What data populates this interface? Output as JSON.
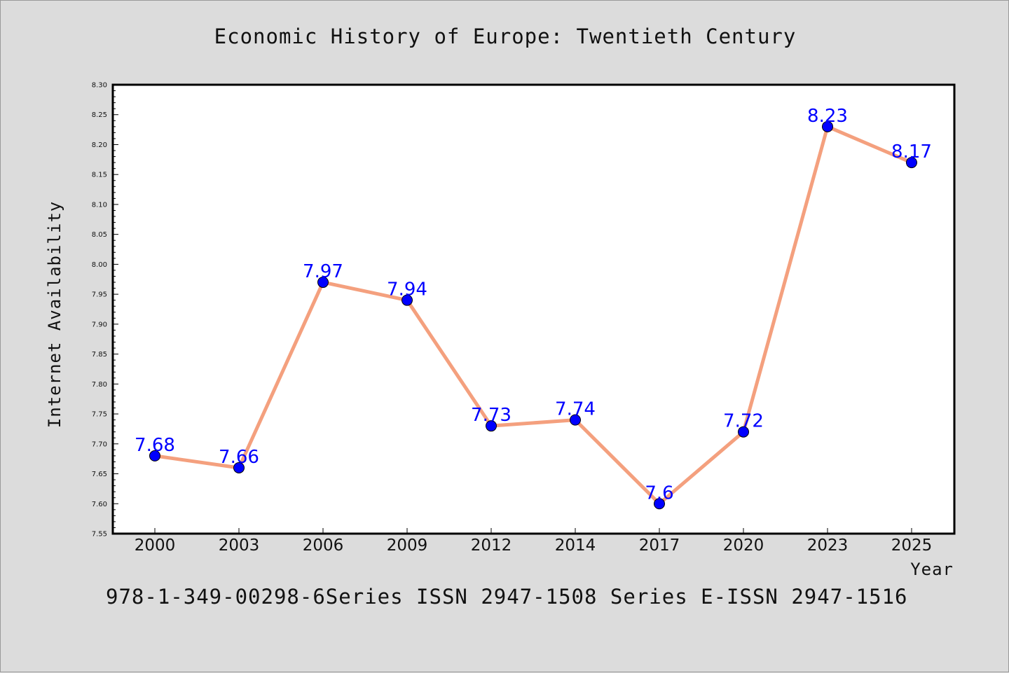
{
  "title": "Economic History of Europe: Twentieth Century",
  "footer": "978-1-349-00298-6Series ISSN 2947-1508 Series E-ISSN 2947-1516",
  "chart_data": {
    "type": "line",
    "title": "Economic History of Europe: Twentieth Century",
    "xlabel": "Year",
    "ylabel": "Internet Availability",
    "categories": [
      "2000",
      "2003",
      "2006",
      "2009",
      "2012",
      "2014",
      "2017",
      "2020",
      "2023",
      "2025"
    ],
    "values": [
      7.68,
      7.66,
      7.97,
      7.94,
      7.73,
      7.74,
      7.6,
      7.72,
      8.23,
      8.17
    ],
    "data_labels": [
      "7.68",
      "7.66",
      "7.97",
      "7.94",
      "7.73",
      "7.74",
      "7.6",
      "7.72",
      "8.23",
      "8.17"
    ],
    "ylim": [
      7.55,
      8.3
    ],
    "yticks": [
      "7.55",
      "7.60",
      "7.65",
      "7.70",
      "7.75",
      "7.80",
      "7.85",
      "7.90",
      "7.95",
      "8.00",
      "8.05",
      "8.10",
      "8.15",
      "8.20",
      "8.25",
      "8.30"
    ],
    "grid": false,
    "line_color": "#f4a07e",
    "marker_color": "#0000ff",
    "label_color": "#0000ff"
  }
}
